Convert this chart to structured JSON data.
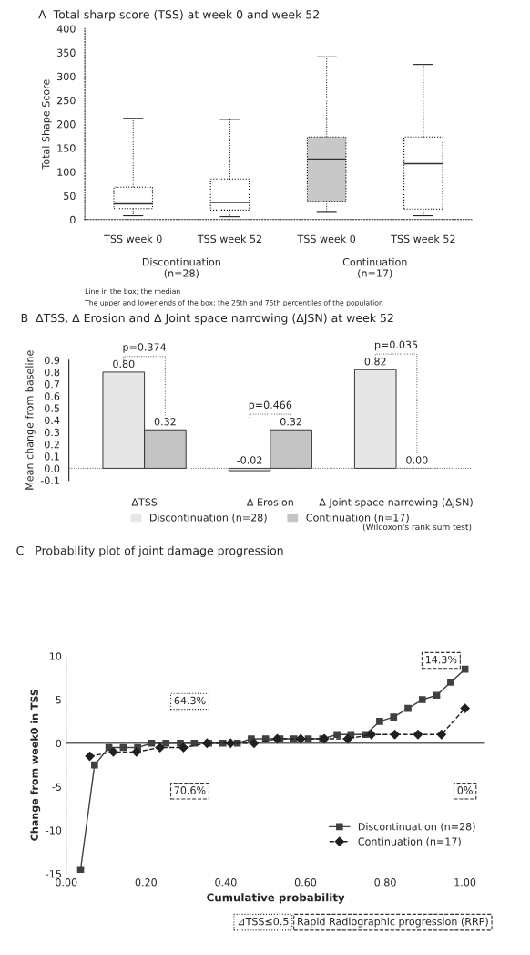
{
  "chart_data": [
    {
      "type": "box",
      "title": "A  Total sharp score (TSS) at week 0 and week 52",
      "ylabel": "Total Shape Score",
      "categories": [
        "TSS week 0",
        "TSS week 52",
        "TSS week 0",
        "TSS week 52"
      ],
      "boxes": [
        {
          "low": 8,
          "q1": 23,
          "median": 33,
          "q3": 68,
          "high": 212
        },
        {
          "low": 6,
          "q1": 20,
          "median": 36,
          "q3": 85,
          "high": 210
        },
        {
          "low": 17,
          "q1": 38,
          "median": 127,
          "q3": 173,
          "high": 341
        },
        {
          "low": 8,
          "q1": 22,
          "median": 117,
          "q3": 173,
          "high": 325
        }
      ],
      "colors": [
        "#ffffff",
        "#ffffff",
        "#c8c8c8",
        "#ffffff"
      ],
      "ylim": [
        0,
        400
      ],
      "yticks": [
        0,
        50,
        100,
        150,
        200,
        250,
        300,
        350,
        400
      ],
      "annotations": [
        "Discontinuation\n(n=28)",
        "Continuation\n(n=17)",
        "Line in the box; the median",
        "The upper and lower ends of the box; the 25th and 75th percentiles of the population"
      ]
    },
    {
      "type": "bar",
      "title": "B  ΔTSS, Δ Erosion and Δ Joint space narrowing (ΔJSN) at week 52",
      "ylabel": "Mean change from baseline",
      "categories": [
        "ΔTSS",
        "Δ Erosion",
        "Δ Joint space narrowing (ΔJSN)"
      ],
      "series": [
        {
          "name": "Discontinuation (n=28)",
          "color": "#e6e6e6",
          "values": [
            0.8,
            -0.02,
            0.82
          ],
          "value_labels": [
            "0.80",
            "-0.02",
            "0.82"
          ]
        },
        {
          "name": "Continuation (n=17)",
          "color": "#c4c4c4",
          "values": [
            0.32,
            0.32,
            0.0
          ],
          "value_labels": [
            "0.32",
            "0.32",
            "0.00"
          ]
        }
      ],
      "ylim": [
        -0.1,
        0.9
      ],
      "yticks": [
        -0.1,
        {
          "value": 0,
          "label": "0.0"
        },
        0.1,
        0.2,
        0.3,
        0.4,
        0.5,
        0.6,
        0.7,
        0.8,
        0.9
      ],
      "legend": "bottom",
      "annotations": [
        "p=0.374",
        "p=0.466",
        "p=0.035",
        "(Wilcoxon's rank sum test)"
      ]
    },
    {
      "type": "line",
      "title": "C   Probability plot of joint damage progression",
      "xlabel": "Cumulative probability",
      "ylabel": "Change from week0 in TSS",
      "series": [
        {
          "name": "Discontinuation (n=28)",
          "color": "#404040",
          "marker": "square",
          "line_style": "solid",
          "x": [
            0.036,
            0.071,
            0.107,
            0.143,
            0.179,
            0.214,
            0.25,
            0.286,
            0.321,
            0.357,
            0.393,
            0.429,
            0.464,
            0.5,
            0.536,
            0.571,
            0.607,
            0.643,
            0.679,
            0.714,
            0.75,
            0.786,
            0.821,
            0.857,
            0.893,
            0.929,
            0.964,
            1.0
          ],
          "values": [
            -14.5,
            -2.5,
            -0.5,
            -0.5,
            -0.5,
            0,
            0,
            0,
            0,
            0,
            0,
            0,
            0.5,
            0.5,
            0.5,
            0.5,
            0.5,
            0.5,
            1,
            1,
            1,
            2.5,
            3,
            4,
            5,
            5.5,
            7,
            8.5
          ]
        },
        {
          "name": "Continuation (n=17)",
          "color": "#202020",
          "marker": "diamond",
          "line_style": "dashed",
          "x": [
            0.059,
            0.118,
            0.176,
            0.235,
            0.294,
            0.353,
            0.412,
            0.471,
            0.529,
            0.588,
            0.647,
            0.706,
            0.765,
            0.824,
            0.882,
            0.941,
            1.0
          ],
          "values": [
            -1.5,
            -1,
            -1,
            -0.5,
            -0.5,
            0,
            0,
            0,
            0.5,
            0.5,
            0.5,
            0.5,
            1,
            1,
            1,
            1,
            4
          ]
        }
      ],
      "xlim": [
        0,
        1.05
      ],
      "xticks": [
        {
          "value": 0,
          "label": "0.00"
        },
        {
          "value": 0.2,
          "label": "0.20"
        },
        {
          "value": 0.4,
          "label": "0.40"
        },
        {
          "value": 0.6,
          "label": "0.60"
        },
        {
          "value": 0.8,
          "label": "0.80"
        },
        {
          "value": 1.0,
          "label": "1.00"
        }
      ],
      "ylim": [
        -15,
        10
      ],
      "yticks": [
        -15,
        -10,
        -5,
        0,
        5,
        10
      ],
      "legend": "bottom right",
      "ref_lines": [
        {
          "axis": "y",
          "value": 0,
          "color": "#606060",
          "line_style": "solid"
        }
      ],
      "annotations": [
        {
          "text": "64.3%",
          "x": 0.31,
          "y": 4.8
        },
        {
          "text": "70.6%",
          "x": 0.31,
          "y": -5.5
        },
        {
          "text": "14.3%",
          "x": 0.94,
          "y": 9.5
        },
        {
          "text": "0%",
          "x": 1.0,
          "y": -5.5
        },
        "⊿TSS≤0.5",
        "Rapid Radiographic progression (RRP)"
      ]
    }
  ]
}
